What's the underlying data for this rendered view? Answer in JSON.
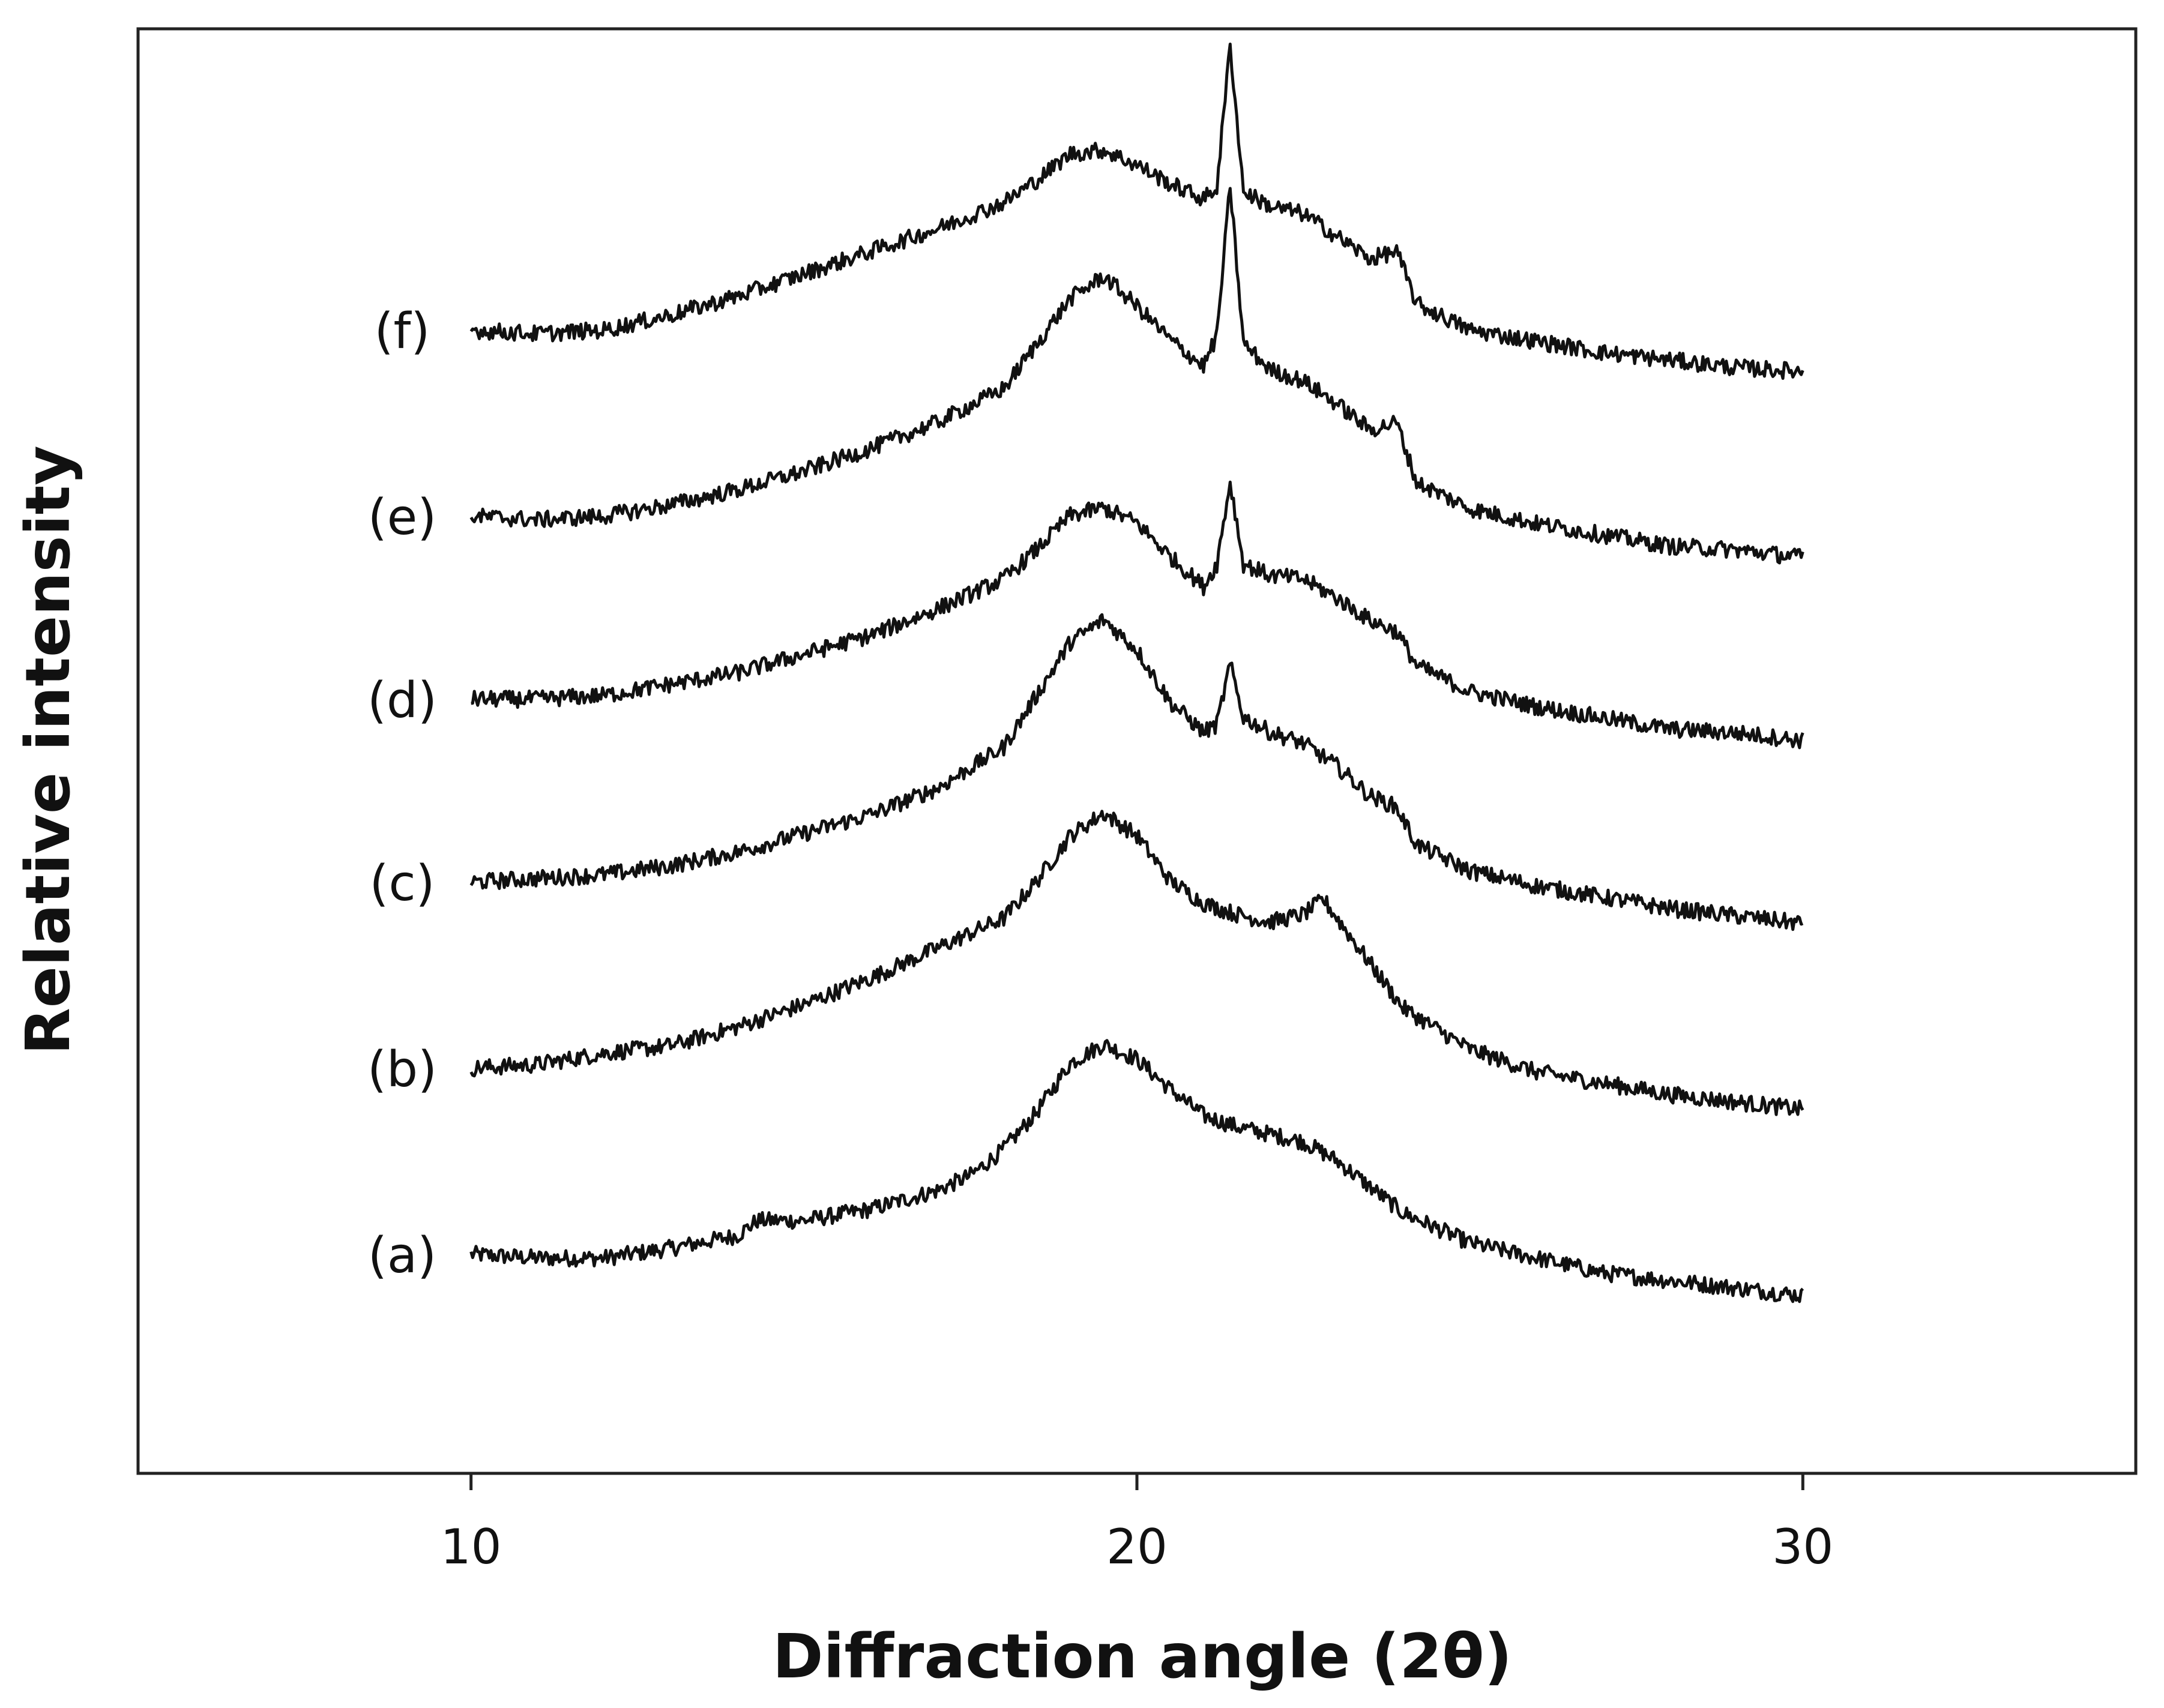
{
  "chart_data": {
    "type": "line",
    "title": "",
    "xlabel": "Diffraction angle (2θ)",
    "ylabel": "Relative intensity",
    "xlim": [
      5,
      35
    ],
    "x_ticks": [
      10,
      20,
      30
    ],
    "x_tick_labels": [
      "10",
      "20",
      "30"
    ],
    "y_ticks_shown": false,
    "grid": false,
    "legend": "none (series labels placed at left of each curve)",
    "stacked_offset": true,
    "colors": {
      "line": "#111111",
      "axis": "#222222",
      "background": "#ffffff"
    },
    "series": [
      {
        "name": "(a)",
        "x": [
          10,
          11,
          12,
          13,
          14,
          14.3,
          15,
          16,
          17,
          17.5,
          18,
          18.5,
          19,
          19.5,
          20,
          20.5,
          21,
          21.5,
          22,
          22.5,
          23,
          23.5,
          24,
          25,
          26,
          27,
          28,
          29,
          30
        ],
        "y": [
          0.6,
          0.55,
          0.55,
          0.68,
          0.85,
          1.05,
          1.05,
          1.2,
          1.45,
          1.65,
          2.0,
          2.5,
          3.15,
          3.4,
          3.2,
          2.8,
          2.45,
          2.3,
          2.2,
          2.1,
          1.85,
          1.5,
          1.15,
          0.75,
          0.55,
          0.35,
          0.25,
          0.15,
          0.05
        ]
      },
      {
        "name": "(b)",
        "x": [
          10,
          11,
          12,
          13,
          14,
          15,
          16,
          17,
          18,
          18.5,
          19,
          19.5,
          20,
          20.5,
          21,
          21.5,
          22,
          22.5,
          22.8,
          23.5,
          24,
          25,
          26,
          27,
          28,
          29,
          30
        ],
        "y": [
          0.6,
          0.65,
          0.8,
          0.9,
          1.15,
          1.45,
          1.8,
          2.2,
          2.6,
          3.1,
          3.7,
          4.0,
          3.7,
          3.1,
          2.8,
          2.65,
          2.55,
          2.65,
          2.85,
          2.0,
          1.4,
          0.85,
          0.55,
          0.4,
          0.25,
          0.15,
          0.05
        ]
      },
      {
        "name": "(c)",
        "x": [
          10,
          11,
          12,
          13,
          14,
          15,
          16,
          17,
          18,
          18.5,
          19,
          19.5,
          20,
          20.5,
          21,
          21.2,
          21.4,
          21.6,
          22,
          22.5,
          23,
          23.5,
          23.9,
          24.2,
          25,
          26,
          27,
          28,
          29,
          30
        ],
        "y": [
          0.6,
          0.65,
          0.7,
          0.82,
          1.0,
          1.25,
          1.5,
          1.85,
          2.4,
          3.1,
          3.8,
          4.1,
          3.7,
          3.0,
          2.6,
          2.7,
          3.5,
          2.8,
          2.6,
          2.45,
          2.15,
          1.75,
          1.6,
          1.1,
          0.75,
          0.55,
          0.4,
          0.25,
          0.15,
          0.05
        ]
      },
      {
        "name": "(d)",
        "x": [
          10,
          11,
          12,
          13,
          14,
          15,
          16,
          17,
          18,
          18.5,
          19,
          19.5,
          20,
          20.5,
          21,
          21.2,
          21.4,
          21.6,
          22,
          22.5,
          23,
          23.5,
          23.9,
          24.2,
          25,
          26,
          27,
          28,
          29,
          30
        ],
        "y": [
          0.6,
          0.6,
          0.65,
          0.8,
          0.95,
          1.2,
          1.45,
          1.8,
          2.2,
          2.6,
          3.05,
          3.15,
          2.95,
          2.5,
          2.1,
          2.4,
          3.5,
          2.4,
          2.25,
          2.2,
          1.95,
          1.65,
          1.5,
          1.05,
          0.7,
          0.5,
          0.35,
          0.2,
          0.15,
          0.05
        ]
      },
      {
        "name": "(e)",
        "x": [
          10,
          11,
          12,
          13,
          14,
          15,
          16,
          17,
          18,
          18.5,
          19,
          19.5,
          20,
          20.5,
          21,
          21.2,
          21.4,
          21.6,
          22,
          22.5,
          23,
          23.5,
          23.9,
          24.2,
          25,
          26,
          27,
          28,
          29,
          30
        ],
        "y": [
          0.6,
          0.55,
          0.6,
          0.75,
          0.95,
          1.2,
          1.5,
          1.85,
          2.3,
          2.9,
          3.5,
          3.8,
          3.4,
          2.95,
          2.6,
          3.0,
          5.0,
          2.9,
          2.55,
          2.4,
          2.1,
          1.75,
          1.85,
          1.05,
          0.7,
          0.5,
          0.35,
          0.2,
          0.15,
          0.05
        ]
      },
      {
        "name": "(f)",
        "x": [
          10,
          11,
          12,
          13,
          14,
          15,
          16,
          17,
          18,
          18.5,
          19,
          19.5,
          20,
          20.5,
          21,
          21.2,
          21.4,
          21.6,
          22,
          22.5,
          23,
          23.5,
          23.9,
          24.2,
          25,
          26,
          27,
          28,
          29,
          30
        ],
        "y": [
          0.6,
          0.55,
          0.6,
          0.8,
          1.05,
          1.35,
          1.65,
          1.95,
          2.3,
          2.6,
          2.95,
          3.0,
          2.8,
          2.55,
          2.35,
          2.5,
          4.4,
          2.45,
          2.25,
          2.15,
          1.85,
          1.55,
          1.65,
          0.95,
          0.6,
          0.45,
          0.3,
          0.2,
          0.1,
          0.05
        ]
      }
    ]
  }
}
